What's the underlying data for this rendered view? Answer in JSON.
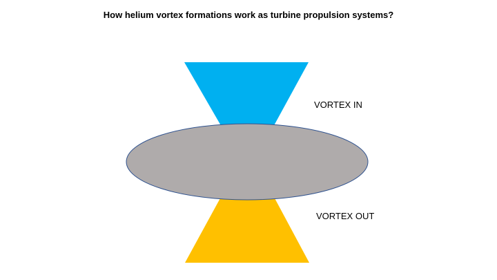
{
  "title": "How helium vortex formations work as turbine propulsion systems?",
  "labels": {
    "vortex_in": "VORTEX IN",
    "vortex_out": "VORTEX OUT"
  },
  "colors": {
    "vortex_in_fill": "#00B0F0",
    "vortex_out_fill": "#FFC000",
    "disc_fill": "#AFABAB",
    "disc_stroke": "#2F528F"
  }
}
